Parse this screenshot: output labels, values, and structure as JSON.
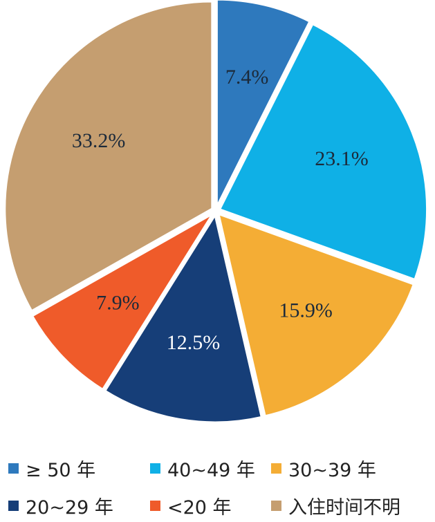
{
  "chart_data": {
    "type": "pie",
    "title": "",
    "slices": [
      {
        "name": "≥ 50 年",
        "value": 7.4,
        "label": "7.4%",
        "color": "#2e79bd",
        "label_color": "#1c2a3a"
      },
      {
        "name": "40~49 年",
        "value": 23.1,
        "label": "23.1%",
        "color": "#0fb0e6",
        "label_color": "#1c2a3a"
      },
      {
        "name": "30~39 年",
        "value": 15.9,
        "label": "15.9%",
        "color": "#f4ad35",
        "label_color": "#1c2a3a"
      },
      {
        "name": "20~29 年",
        "value": 12.5,
        "label": "12.5%",
        "color": "#163e78",
        "label_color": "#ffffff"
      },
      {
        "name": "<20 年",
        "value": 7.9,
        "label": "7.9%",
        "color": "#ef5b2a",
        "label_color": "#1c2a3a"
      },
      {
        "name": "入住时间不明",
        "value": 33.2,
        "label": "33.2%",
        "color": "#c59e70",
        "label_color": "#1c2a3a"
      }
    ],
    "start": "12 o'clock",
    "direction": "clockwise",
    "legend_position": "bottom"
  }
}
